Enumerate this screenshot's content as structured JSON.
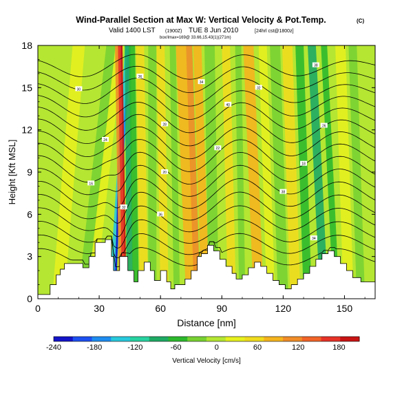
{
  "chart_data": {
    "type": "heatmap",
    "title": "Wind-Parallel Section at Max W: Vertical Velocity & Pot.Temp.",
    "title_badge": "(C)",
    "subtitle_main": "Valid 1400 LST",
    "subtitle_utc": "(1900Z)",
    "subtitle_date": "TUE 8 Jun 2010",
    "subtitle_run": "[24hrl cst@1800z]",
    "subtitle_line3": "box/Imax=169@ 33.66,15.43(1)(271m)",
    "xlabel": "Distance [nm]",
    "ylabel": "Height [Kft MSL]",
    "xlim": [
      0,
      165
    ],
    "ylim": [
      0,
      18
    ],
    "xticks": [
      0,
      30,
      60,
      90,
      120,
      150
    ],
    "yticks": [
      0,
      3,
      6,
      9,
      12,
      15,
      18
    ],
    "colorbar": {
      "label": "Vertical Velocity [cm/s]",
      "range": [
        -240,
        210
      ],
      "ticks": [
        -240,
        -180,
        -120,
        -60,
        0,
        60,
        120,
        180
      ],
      "colors": [
        "#1414c8",
        "#1e50f0",
        "#1e8cf0",
        "#28c8dc",
        "#28d2a0",
        "#1eaa64",
        "#2db92d",
        "#78d232",
        "#b4e632",
        "#e6f01e",
        "#f0dc1e",
        "#f5b41e",
        "#f08c28",
        "#f06428",
        "#e63228",
        "#c81414"
      ]
    },
    "isentrope_labels": [
      "38",
      "32",
      "36",
      "34",
      "40",
      "30",
      "28",
      "26",
      "24",
      "22",
      "20",
      "18",
      "16"
    ],
    "terrain_profile_kft": [
      [
        0,
        0.3
      ],
      [
        6,
        0.3
      ],
      [
        6,
        1
      ],
      [
        9,
        1
      ],
      [
        9,
        1.7
      ],
      [
        11,
        1.7
      ],
      [
        11,
        2.1
      ],
      [
        13,
        2.1
      ],
      [
        13,
        2.5
      ],
      [
        22,
        2.5
      ],
      [
        22,
        2.2
      ],
      [
        25,
        2.2
      ],
      [
        25,
        3
      ],
      [
        28,
        3
      ],
      [
        28,
        4
      ],
      [
        33,
        4
      ],
      [
        33,
        4.2
      ],
      [
        36,
        4.2
      ],
      [
        36,
        3
      ],
      [
        37,
        3
      ],
      [
        37,
        2
      ],
      [
        40,
        2
      ],
      [
        40,
        3
      ],
      [
        44,
        3
      ],
      [
        44,
        2
      ],
      [
        47,
        2
      ],
      [
        47,
        1.2
      ],
      [
        49,
        1.2
      ],
      [
        49,
        2
      ],
      [
        52,
        2
      ],
      [
        52,
        2.6
      ],
      [
        55,
        2.6
      ],
      [
        55,
        2
      ],
      [
        57,
        2
      ],
      [
        57,
        1.3
      ],
      [
        60,
        1.3
      ],
      [
        60,
        2
      ],
      [
        63,
        2
      ],
      [
        63,
        1.2
      ],
      [
        65,
        1.2
      ],
      [
        65,
        0.7
      ],
      [
        67,
        0.7
      ],
      [
        67,
        1
      ],
      [
        72,
        1
      ],
      [
        72,
        1.4
      ],
      [
        75,
        1.4
      ],
      [
        75,
        2
      ],
      [
        78,
        2
      ],
      [
        78,
        3
      ],
      [
        80,
        3
      ],
      [
        80,
        3.2
      ],
      [
        83,
        3.2
      ],
      [
        83,
        3.8
      ],
      [
        86,
        3.8
      ],
      [
        86,
        3.4
      ],
      [
        89,
        3.4
      ],
      [
        89,
        2.8
      ],
      [
        92,
        2.8
      ],
      [
        92,
        2.3
      ],
      [
        95,
        2.3
      ],
      [
        95,
        1.8
      ],
      [
        97,
        1.8
      ],
      [
        97,
        1.4
      ],
      [
        100,
        1.4
      ],
      [
        100,
        1.7
      ],
      [
        103,
        1.7
      ],
      [
        103,
        2.2
      ],
      [
        106,
        2.2
      ],
      [
        106,
        2.6
      ],
      [
        109,
        2.6
      ],
      [
        109,
        2.3
      ],
      [
        112,
        2.3
      ],
      [
        112,
        1.8
      ],
      [
        115,
        1.8
      ],
      [
        115,
        1.3
      ],
      [
        118,
        1.3
      ],
      [
        118,
        1
      ],
      [
        121,
        1
      ],
      [
        121,
        0.7
      ],
      [
        124,
        0.7
      ],
      [
        124,
        1
      ],
      [
        127,
        1
      ],
      [
        127,
        1.4
      ],
      [
        130,
        1.4
      ],
      [
        130,
        1.8
      ],
      [
        133,
        1.8
      ],
      [
        133,
        2.3
      ],
      [
        136,
        2.3
      ],
      [
        136,
        2.8
      ],
      [
        139,
        2.8
      ],
      [
        139,
        3.2
      ],
      [
        142,
        3.2
      ],
      [
        142,
        3.4
      ],
      [
        145,
        3.4
      ],
      [
        145,
        3
      ],
      [
        148,
        3
      ],
      [
        148,
        2.5
      ],
      [
        151,
        2.5
      ],
      [
        151,
        2
      ],
      [
        154,
        2
      ],
      [
        154,
        1.5
      ],
      [
        158,
        1.5
      ],
      [
        158,
        1.2
      ],
      [
        165,
        1.2
      ]
    ]
  }
}
